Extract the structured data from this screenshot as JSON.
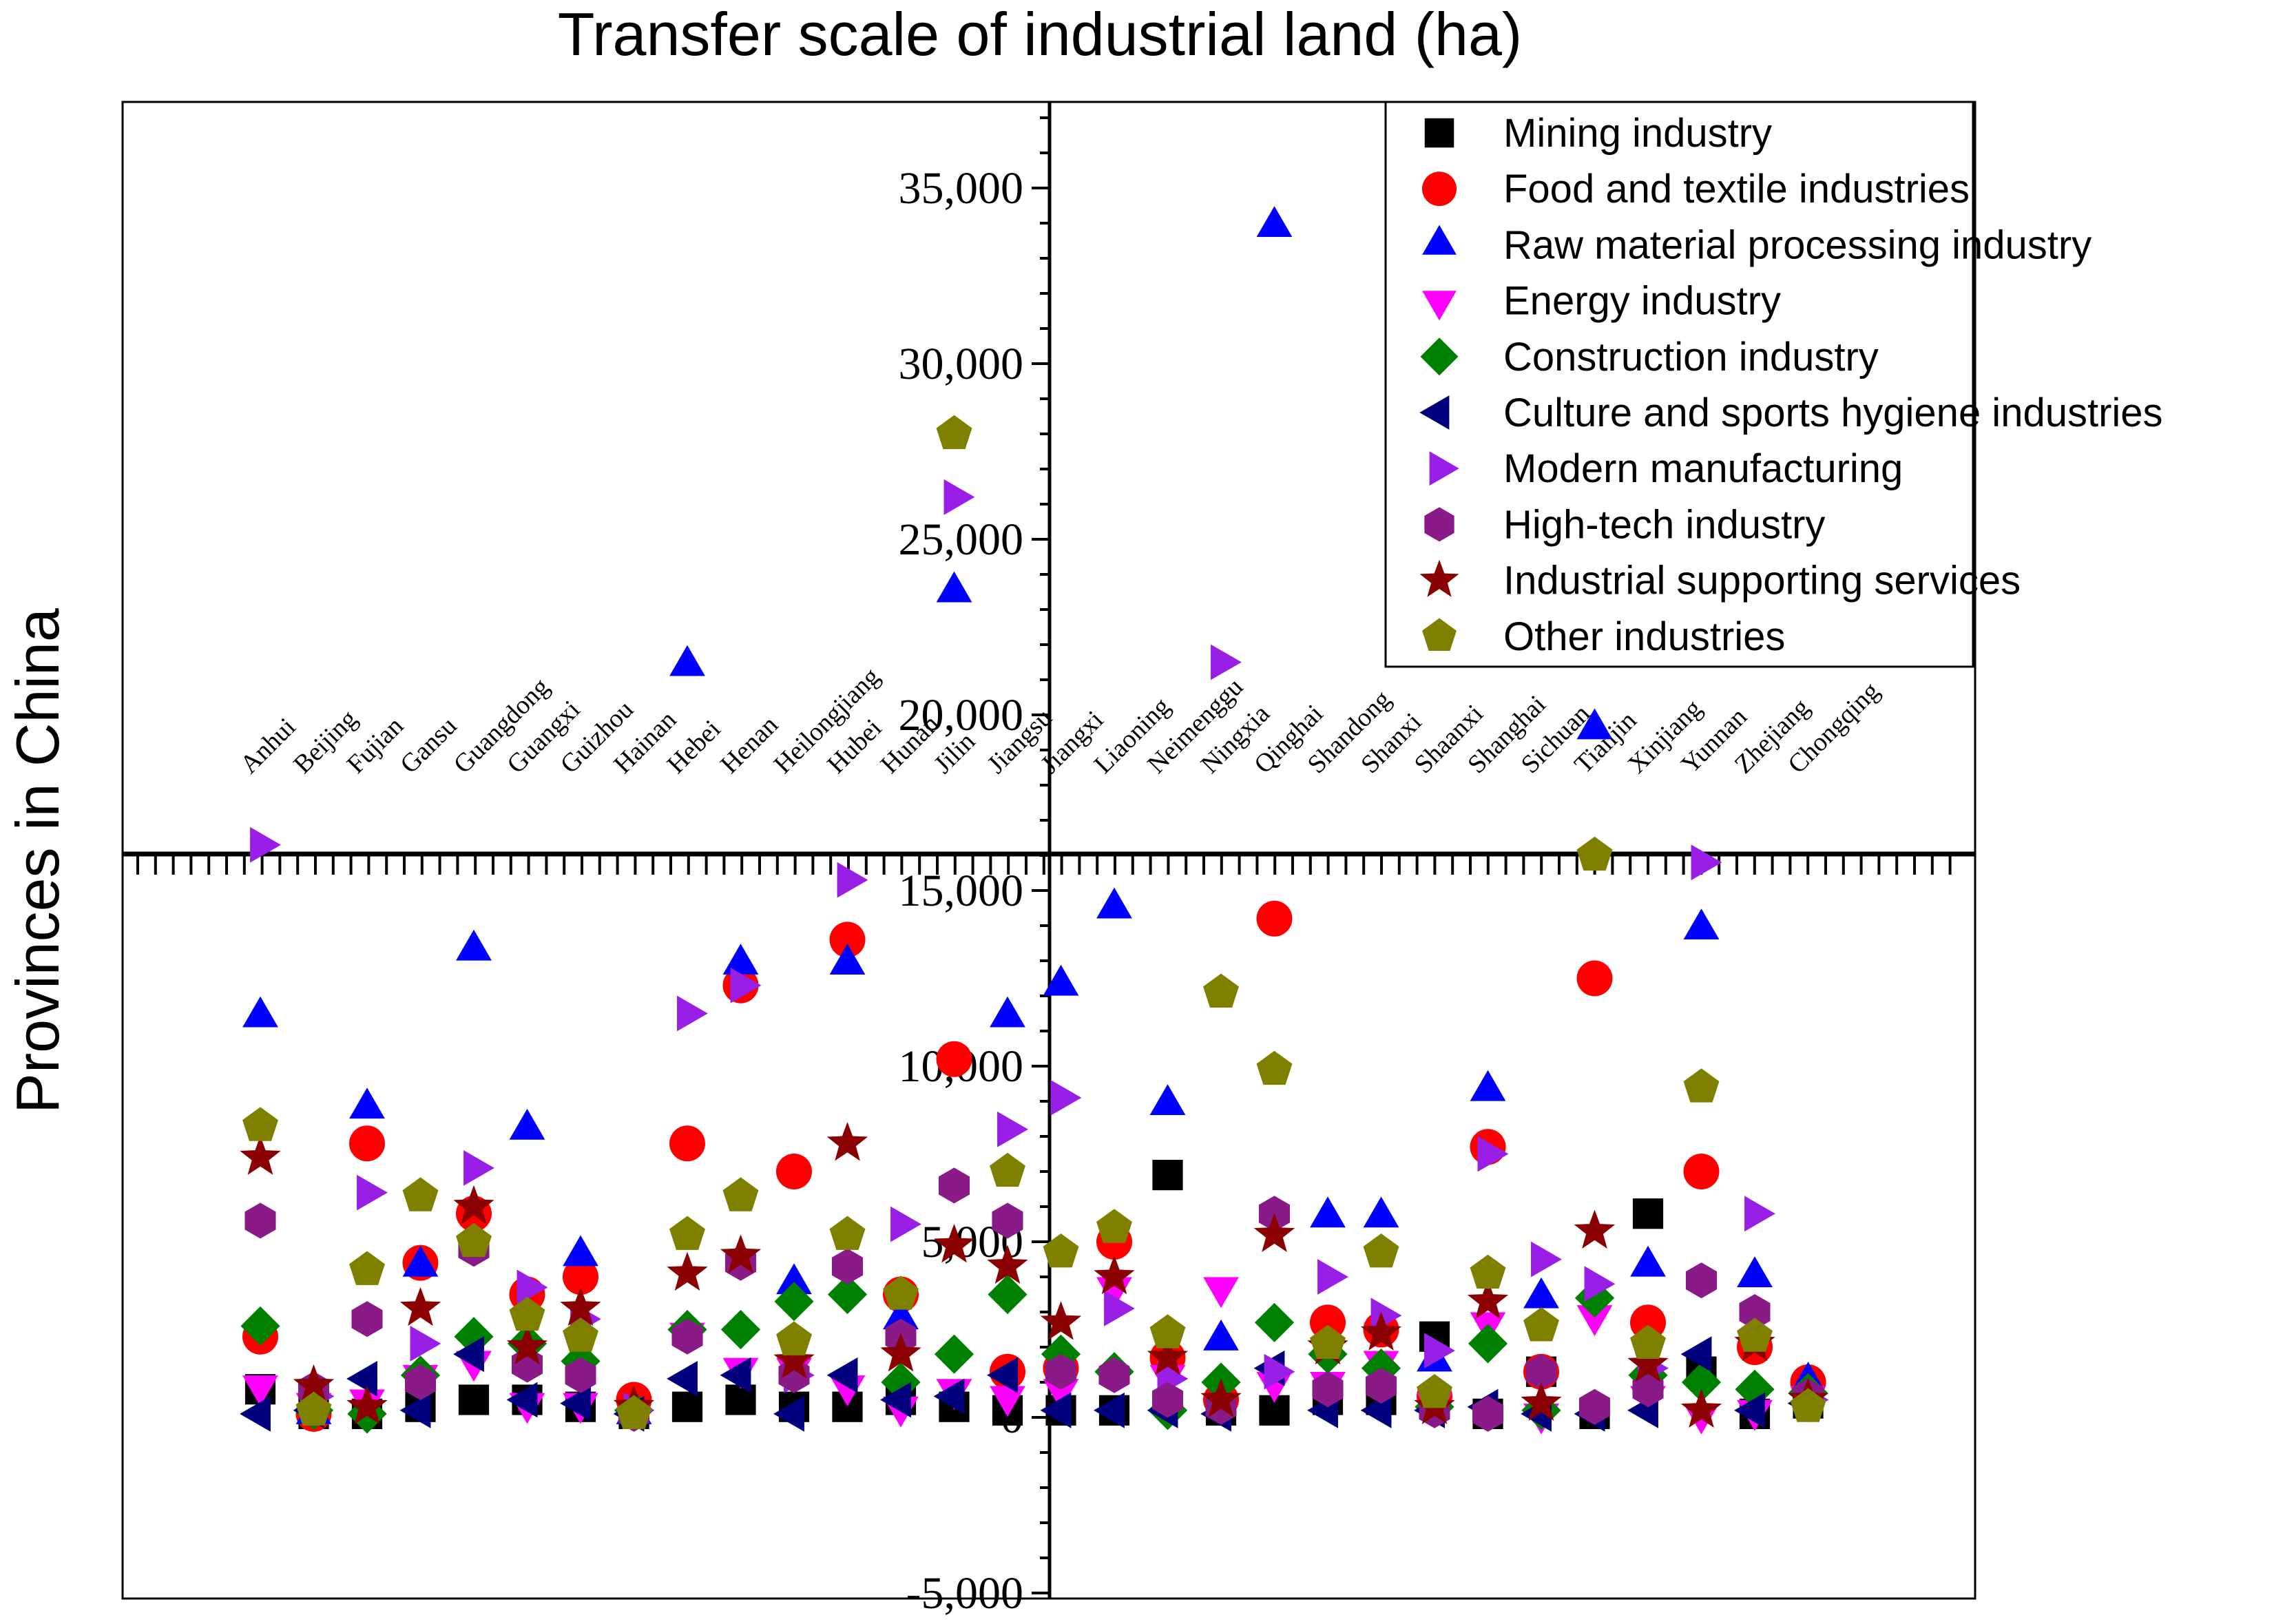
{
  "chart_data": {
    "type": "scatter",
    "title": "Transfer scale of industrial land (ha)",
    "xlabel": "",
    "ylabel": "Provinces in China",
    "ylim": [
      -5000,
      37500
    ],
    "y_ticks": [
      -5000,
      0,
      5000,
      10000,
      15000,
      20000,
      25000,
      30000,
      35000
    ],
    "y_tick_labels": [
      "-5,000",
      "0",
      "5,000",
      "10,000",
      "15,000",
      "20,000",
      "25,000",
      "30,000",
      "35,000"
    ],
    "grid": false,
    "legend_position": "top-right",
    "categories": [
      "Anhui",
      "Beijing",
      "Fujian",
      "Gansu",
      "Guangdong",
      "Guangxi",
      "Guizhou",
      "Hainan",
      "Hebei",
      "Henan",
      "Heilongjiang",
      "Hubei",
      "Hunan",
      "Jilin",
      "Jiangsu",
      "Jiangxi",
      "Liaoning",
      "Neimenggu",
      "Ningxia",
      "Qinghai",
      "Shandong",
      "Shanxi",
      "Shaanxi",
      "Shanghai",
      "Sichuan",
      "Tianjin",
      "Xinjiang",
      "Yunnan",
      "Zhejiang",
      "Chongqing"
    ],
    "series": [
      {
        "name": "Mining industry",
        "marker": "square",
        "color": "#000000",
        "values": [
          800,
          100,
          100,
          300,
          500,
          500,
          300,
          100,
          300,
          500,
          300,
          300,
          500,
          300,
          200,
          200,
          200,
          6900,
          200,
          200,
          500,
          500,
          2300,
          100,
          1300,
          100,
          5800,
          1300,
          100,
          400
        ]
      },
      {
        "name": "Food and textile industries",
        "marker": "circle",
        "color": "#ff0000",
        "values": [
          2300,
          100,
          7800,
          4400,
          5800,
          3500,
          4000,
          500,
          7800,
          12300,
          7000,
          13600,
          3500,
          10200,
          1300,
          1400,
          5000,
          1700,
          500,
          14200,
          2700,
          2500,
          600,
          7700,
          1300,
          12500,
          2700,
          7000,
          2000,
          1000
        ]
      },
      {
        "name": "Raw material processing industry",
        "marker": "triangle-up",
        "color": "#0000ff",
        "values": [
          11400,
          100,
          8800,
          4300,
          13300,
          8200,
          4600,
          100,
          21400,
          12900,
          3800,
          12900,
          2800,
          23500,
          11400,
          12300,
          14500,
          8900,
          2200,
          33900,
          5700,
          5700,
          1600,
          9300,
          3400,
          19600,
          4300,
          13900,
          4000,
          1000
        ]
      },
      {
        "name": "Energy industry",
        "marker": "triangle-down",
        "color": "#ff00ff",
        "values": [
          900,
          400,
          500,
          1200,
          1600,
          400,
          400,
          200,
          2400,
          1400,
          1400,
          900,
          300,
          800,
          600,
          800,
          3700,
          1200,
          3700,
          1000,
          1000,
          1600,
          400,
          2700,
          100,
          2900,
          600,
          100,
          200,
          600
        ]
      },
      {
        "name": "Construction industry",
        "marker": "diamond",
        "color": "#008000",
        "values": [
          2600,
          200,
          100,
          1200,
          2300,
          2100,
          1600,
          200,
          2500,
          2500,
          3300,
          3500,
          1000,
          1800,
          3500,
          1800,
          1300,
          200,
          1000,
          2700,
          1800,
          1400,
          300,
          2100,
          200,
          3400,
          1200,
          1000,
          800,
          700
        ]
      },
      {
        "name": "Culture and sports hygiene industries",
        "marker": "triangle-left",
        "color": "#00007f",
        "values": [
          100,
          200,
          1100,
          200,
          1800,
          500,
          400,
          100,
          1100,
          1200,
          100,
          1200,
          500,
          600,
          1200,
          200,
          200,
          200,
          100,
          1400,
          200,
          200,
          200,
          300,
          100,
          100,
          200,
          1800,
          200,
          400
        ]
      },
      {
        "name": "Modern manufacturing",
        "marker": "triangle-right",
        "color": "#9a1fe6",
        "values": [
          16300,
          600,
          6400,
          2100,
          7100,
          3700,
          2800,
          200,
          11500,
          12300,
          1200,
          15300,
          5500,
          26200,
          8200,
          9100,
          3100,
          1100,
          21500,
          1300,
          4000,
          2900,
          1900,
          7500,
          4500,
          3800,
          1400,
          15800,
          5800,
          500
        ]
      },
      {
        "name": "High-tech industry",
        "marker": "hexagon",
        "color": "#8b1a89",
        "values": [
          5600,
          800,
          2800,
          1000,
          4800,
          1500,
          1200,
          100,
          2300,
          4400,
          1200,
          4300,
          2300,
          6600,
          5600,
          1300,
          1200,
          500,
          300,
          5800,
          800,
          900,
          200,
          100,
          1300,
          300,
          800,
          3900,
          3000,
          600
        ]
      },
      {
        "name": "Industrial supporting services",
        "marker": "star",
        "color": "#8b0000",
        "values": [
          7400,
          900,
          300,
          3100,
          6000,
          2000,
          3100,
          300,
          4100,
          4600,
          1600,
          7800,
          1800,
          4900,
          4300,
          2700,
          4000,
          1700,
          500,
          5200,
          2000,
          2400,
          300,
          3300,
          400,
          5300,
          1500,
          200,
          2100,
          500
        ]
      },
      {
        "name": "Other industries",
        "marker": "pentagon",
        "color": "#808000",
        "values": [
          8300,
          200,
          4200,
          6300,
          5000,
          2900,
          2300,
          100,
          5200,
          6300,
          2200,
          5200,
          3500,
          28000,
          7000,
          4700,
          5400,
          2400,
          12100,
          9900,
          2100,
          4700,
          700,
          4100,
          2600,
          16000,
          2100,
          9400,
          2300,
          300
        ]
      }
    ]
  }
}
